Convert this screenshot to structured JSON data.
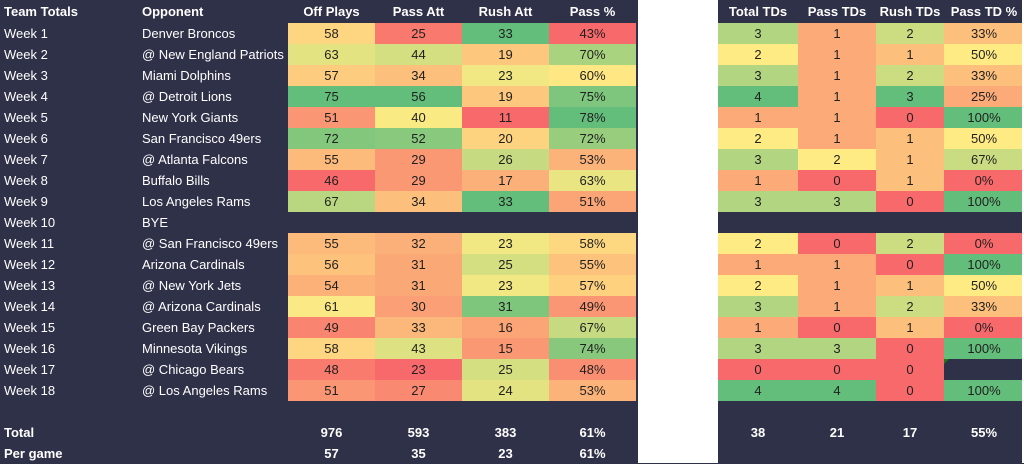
{
  "chart_data": {
    "type": "table",
    "left_table": {
      "headers": [
        "Team Totals",
        "Opponent",
        "Off Plays",
        "Pass Att",
        "Rush Att",
        "Pass %"
      ],
      "rows": [
        {
          "week": "Week 1",
          "opponent": "Denver Broncos",
          "off_plays": "58",
          "pass_att": "25",
          "rush_att": "33",
          "pass_pct": "43%"
        },
        {
          "week": "Week 2",
          "opponent": "@ New England Patriots",
          "off_plays": "63",
          "pass_att": "44",
          "rush_att": "19",
          "pass_pct": "70%"
        },
        {
          "week": "Week 3",
          "opponent": "Miami Dolphins",
          "off_plays": "57",
          "pass_att": "34",
          "rush_att": "23",
          "pass_pct": "60%"
        },
        {
          "week": "Week 4",
          "opponent": "@ Detroit Lions",
          "off_plays": "75",
          "pass_att": "56",
          "rush_att": "19",
          "pass_pct": "75%"
        },
        {
          "week": "Week 5",
          "opponent": "New York Giants",
          "off_plays": "51",
          "pass_att": "40",
          "rush_att": "11",
          "pass_pct": "78%"
        },
        {
          "week": "Week 6",
          "opponent": "San Francisco 49ers",
          "off_plays": "72",
          "pass_att": "52",
          "rush_att": "20",
          "pass_pct": "72%"
        },
        {
          "week": "Week 7",
          "opponent": "@ Atlanta Falcons",
          "off_plays": "55",
          "pass_att": "29",
          "rush_att": "26",
          "pass_pct": "53%"
        },
        {
          "week": "Week 8",
          "opponent": "Buffalo Bills",
          "off_plays": "46",
          "pass_att": "29",
          "rush_att": "17",
          "pass_pct": "63%"
        },
        {
          "week": "Week 9",
          "opponent": "Los Angeles Rams",
          "off_plays": "67",
          "pass_att": "34",
          "rush_att": "33",
          "pass_pct": "51%"
        },
        {
          "week": "Week 10",
          "opponent": "BYE",
          "off_plays": "",
          "pass_att": "",
          "rush_att": "",
          "pass_pct": ""
        },
        {
          "week": "Week 11",
          "opponent": "@ San Francisco 49ers",
          "off_plays": "55",
          "pass_att": "32",
          "rush_att": "23",
          "pass_pct": "58%"
        },
        {
          "week": "Week 12",
          "opponent": "Arizona Cardinals",
          "off_plays": "56",
          "pass_att": "31",
          "rush_att": "25",
          "pass_pct": "55%"
        },
        {
          "week": "Week 13",
          "opponent": "@ New York Jets",
          "off_plays": "54",
          "pass_att": "31",
          "rush_att": "23",
          "pass_pct": "57%"
        },
        {
          "week": "Week 14",
          "opponent": "@ Arizona Cardinals",
          "off_plays": "61",
          "pass_att": "30",
          "rush_att": "31",
          "pass_pct": "49%"
        },
        {
          "week": "Week 15",
          "opponent": "Green Bay Packers",
          "off_plays": "49",
          "pass_att": "33",
          "rush_att": "16",
          "pass_pct": "67%"
        },
        {
          "week": "Week 16",
          "opponent": "Minnesota Vikings",
          "off_plays": "58",
          "pass_att": "43",
          "rush_att": "15",
          "pass_pct": "74%"
        },
        {
          "week": "Week 17",
          "opponent": "@ Chicago Bears",
          "off_plays": "48",
          "pass_att": "23",
          "rush_att": "25",
          "pass_pct": "48%"
        },
        {
          "week": "Week 18",
          "opponent": "@ Los Angeles Rams",
          "off_plays": "51",
          "pass_att": "27",
          "rush_att": "24",
          "pass_pct": "53%"
        }
      ],
      "total": {
        "label": "Total",
        "off_plays": "976",
        "pass_att": "593",
        "rush_att": "383",
        "pass_pct": "61%"
      },
      "per_game": {
        "label": "Per game",
        "off_plays": "57",
        "pass_att": "35",
        "rush_att": "23",
        "pass_pct": "61%"
      }
    },
    "right_table": {
      "headers": [
        "Total TDs",
        "Pass TDs",
        "Rush TDs",
        "Pass TD %"
      ],
      "rows": [
        {
          "total_tds": "3",
          "pass_tds": "1",
          "rush_tds": "2",
          "pass_td_pct": "33%"
        },
        {
          "total_tds": "2",
          "pass_tds": "1",
          "rush_tds": "1",
          "pass_td_pct": "50%"
        },
        {
          "total_tds": "3",
          "pass_tds": "1",
          "rush_tds": "2",
          "pass_td_pct": "33%"
        },
        {
          "total_tds": "4",
          "pass_tds": "1",
          "rush_tds": "3",
          "pass_td_pct": "25%"
        },
        {
          "total_tds": "1",
          "pass_tds": "1",
          "rush_tds": "0",
          "pass_td_pct": "100%"
        },
        {
          "total_tds": "2",
          "pass_tds": "1",
          "rush_tds": "1",
          "pass_td_pct": "50%"
        },
        {
          "total_tds": "3",
          "pass_tds": "2",
          "rush_tds": "1",
          "pass_td_pct": "67%"
        },
        {
          "total_tds": "1",
          "pass_tds": "0",
          "rush_tds": "1",
          "pass_td_pct": "0%"
        },
        {
          "total_tds": "3",
          "pass_tds": "3",
          "rush_tds": "0",
          "pass_td_pct": "100%"
        },
        {
          "total_tds": "",
          "pass_tds": "",
          "rush_tds": "",
          "pass_td_pct": ""
        },
        {
          "total_tds": "2",
          "pass_tds": "0",
          "rush_tds": "2",
          "pass_td_pct": "0%"
        },
        {
          "total_tds": "1",
          "pass_tds": "1",
          "rush_tds": "0",
          "pass_td_pct": "100%"
        },
        {
          "total_tds": "2",
          "pass_tds": "1",
          "rush_tds": "1",
          "pass_td_pct": "50%"
        },
        {
          "total_tds": "3",
          "pass_tds": "1",
          "rush_tds": "2",
          "pass_td_pct": "33%"
        },
        {
          "total_tds": "1",
          "pass_tds": "0",
          "rush_tds": "1",
          "pass_td_pct": "0%"
        },
        {
          "total_tds": "3",
          "pass_tds": "3",
          "rush_tds": "0",
          "pass_td_pct": "100%"
        },
        {
          "total_tds": "0",
          "pass_tds": "0",
          "rush_tds": "0",
          "pass_td_pct": ""
        },
        {
          "total_tds": "4",
          "pass_tds": "4",
          "rush_tds": "0",
          "pass_td_pct": "100%"
        }
      ],
      "total": {
        "total_tds": "38",
        "pass_tds": "21",
        "rush_tds": "17",
        "pass_td_pct": "55%"
      }
    },
    "colors": {
      "background": "#2e3148",
      "green": "#63be7b",
      "yellow": "#ffeb84",
      "red": "#f8696b",
      "separator": "#ffffff"
    }
  }
}
